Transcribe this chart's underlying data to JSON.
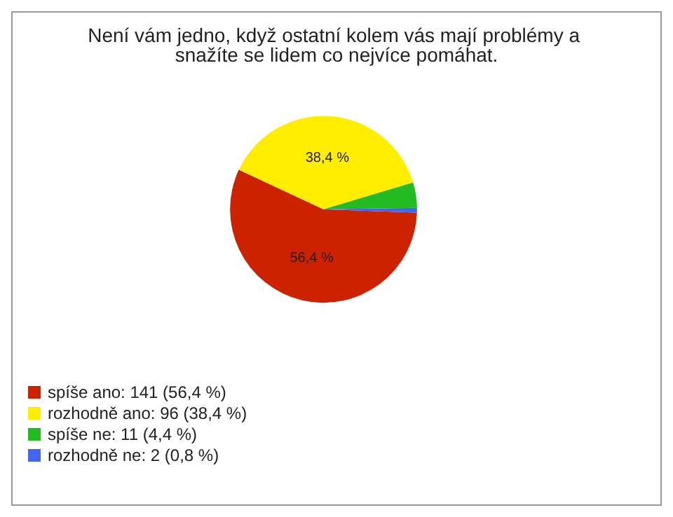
{
  "chart_data": {
    "type": "pie",
    "title": "Není vám jedno, když ostatní kolem vás mají problémy a snažíte se lidem co nejvíce pomáhat.",
    "categories": [
      "spíše ano: 141 (56,4 %)",
      "rozhodně ano: 96 (38,4 %)",
      "spíše ne: 11 (4,4 %)",
      "rozhodně ne: 2 (0,8 %)"
    ],
    "values": [
      56.4,
      38.4,
      4.4,
      0.8
    ],
    "colors": [
      "#cc2200",
      "#ffee00",
      "#22bb22",
      "#4466ee"
    ],
    "value_labels": [
      "56,4 %",
      "38,4 %",
      null,
      null
    ],
    "legend": "bottom left"
  }
}
